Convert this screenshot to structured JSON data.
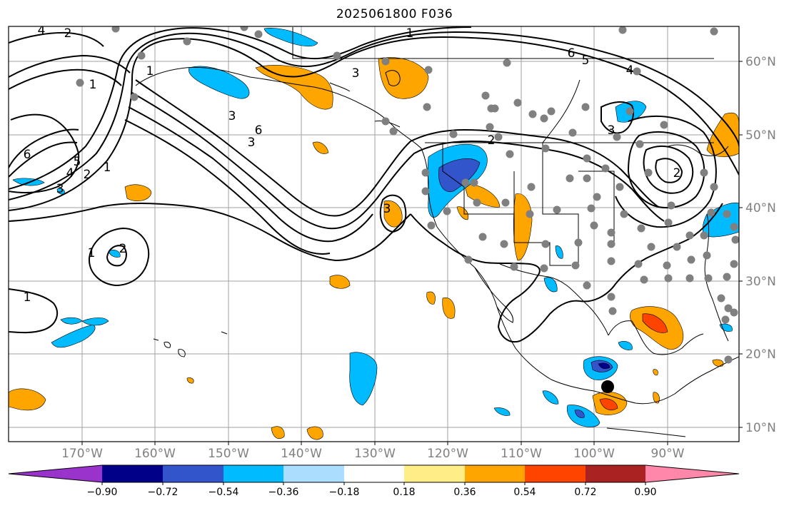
{
  "title": "2025061800 F036",
  "colors": {
    "frame": "#000000",
    "grid": "#a0a0a0",
    "coast": "#000000",
    "contour": "#000000",
    "station": "#808080",
    "marker": "#000000",
    "tick_label": "#808080"
  },
  "longitude_labels": [
    "170°W",
    "160°W",
    "150°W",
    "140°W",
    "130°W",
    "120°W",
    "110°W",
    "100°W",
    "90°W"
  ],
  "latitude_labels": [
    "60°N",
    "50°N",
    "40°N",
    "30°N",
    "20°N",
    "10°N"
  ],
  "contour_labels": [
    "4",
    "2",
    "1",
    "6",
    "5",
    "4",
    "3",
    "2",
    "1",
    "1",
    "2",
    "1",
    "3",
    "6",
    "3",
    "3",
    "6",
    "5",
    "4",
    "1",
    "2",
    "3",
    "3",
    "2",
    "1"
  ],
  "colorbar": {
    "colors": [
      "#9933cc",
      "#000088",
      "#3355cc",
      "#00bbff",
      "#aaddff",
      "#ffffff",
      "#ffee88",
      "#ffa500",
      "#ff4400",
      "#aa2222",
      "#ff88aa"
    ],
    "tick_labels": [
      "−0.90",
      "−0.72",
      "−0.54",
      "−0.36",
      "−0.18",
      "0.18",
      "0.36",
      "0.54",
      "0.72",
      "0.90"
    ]
  }
}
